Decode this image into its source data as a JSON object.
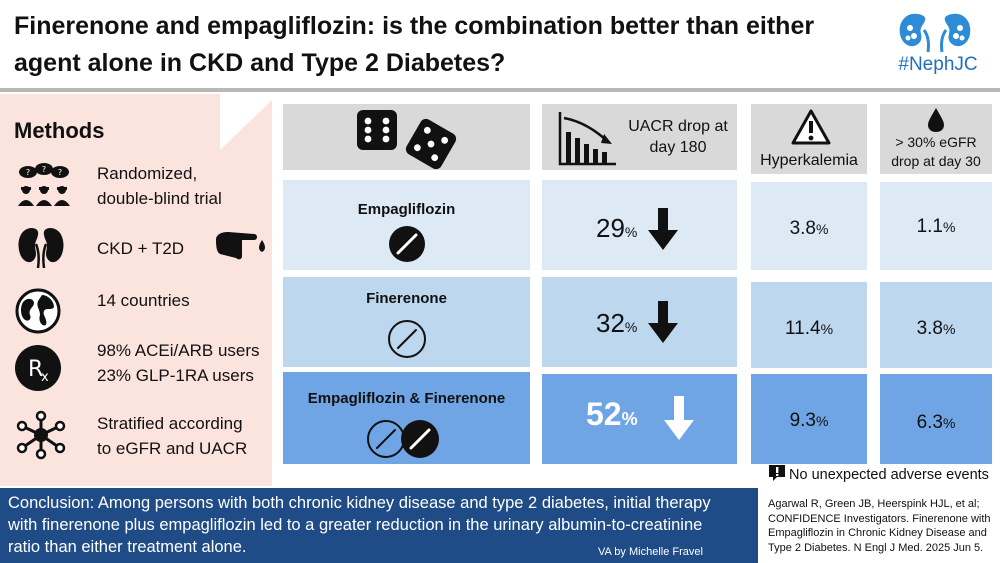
{
  "header": {
    "title_line1": "Finerenone and empagliflozin: is the combination better than either",
    "title_line2": "agent alone in CKD and Type 2 Diabetes?",
    "logo_tag": "#NephJC"
  },
  "methods": {
    "title": "Methods",
    "items": [
      {
        "icon": "masked-people-icon",
        "line1": "Randomized,",
        "line2": "double-blind trial"
      },
      {
        "icon": "kidneys-icon",
        "line1": "CKD + T2D",
        "line2": ""
      },
      {
        "icon": "globe-icon",
        "line1": "14 countries",
        "line2": ""
      },
      {
        "icon": "rx-icon",
        "line1": "98% ACEi/ARB users",
        "line2": "23% GLP-1RA users"
      },
      {
        "icon": "network-icon",
        "line1": "Stratified according",
        "line2": "to eGFR and UACR"
      }
    ]
  },
  "table": {
    "headers": {
      "uacr_line1": "UACR drop at",
      "uacr_line2": "day 180",
      "hyperkalemia": "Hyperkalemia",
      "egfr_line1": "> 30% eGFR",
      "egfr_line2": "drop at day 30"
    },
    "rows": [
      {
        "label": "Empagliflozin",
        "uacr": "29",
        "hyperkalemia": "3.8",
        "egfr": "1.1"
      },
      {
        "label": "Finerenone",
        "uacr": "32",
        "hyperkalemia": "11.4",
        "egfr": "3.8"
      },
      {
        "label": "Empagliflozin & Finerenone",
        "uacr": "52",
        "hyperkalemia": "9.3",
        "egfr": "6.3"
      }
    ],
    "unit": "%"
  },
  "notice": "No unexpected adverse events",
  "conclusion": {
    "line1": "Conclusion: Among persons with both chronic kidney disease and type 2 diabetes, initial therapy",
    "line2": "with finerenone plus empagliflozin led to a greater reduction in the urinary albumin-to-creatinine",
    "line3": "ratio than either treatment alone.",
    "credit": "VA by Michelle Fravel"
  },
  "reference": {
    "line1": "Agarwal R, Green JB, Heerspink HJL, et al;",
    "line2": "CONFIDENCE Investigators. Finerenone with",
    "line3": "Empagliflozin in Chronic Kidney Disease and",
    "line4": "Type 2 Diabetes. N Engl J Med. 2025 Jun 5."
  },
  "colors": {
    "row1": "#ddeaf6",
    "row2": "#bdd7ee",
    "row3": "#6fa5e5",
    "header_cell": "#d9d9d9",
    "methods_bg": "#fbe3de",
    "conclusion_bg": "#1f4b86",
    "logo_blue": "#1f6fc2"
  }
}
